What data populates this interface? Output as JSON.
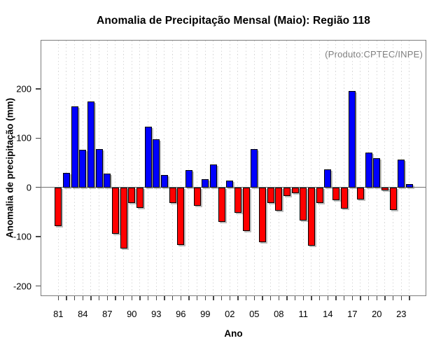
{
  "page": {
    "title": "Anomalia de Precipitação Mensal (Maio): Região 118"
  },
  "chart_data": {
    "type": "bar",
    "title": "Anomalia de Precipitação Mensal (Maio): Região 118",
    "xlabel": "Ano",
    "ylabel": "Anomalia de precipitação (mm)",
    "annotation": "(Produto:CPTEC/INPE)",
    "categories": [
      "81",
      "82",
      "83",
      "84",
      "85",
      "86",
      "87",
      "88",
      "89",
      "90",
      "91",
      "92",
      "93",
      "94",
      "95",
      "96",
      "97",
      "98",
      "99",
      "00",
      "01",
      "02",
      "03",
      "04",
      "05",
      "06",
      "07",
      "08",
      "09",
      "10",
      "11",
      "12",
      "13",
      "14",
      "15",
      "16",
      "17",
      "18",
      "19",
      "20",
      "21",
      "22",
      "23",
      "24"
    ],
    "values": [
      -78,
      30,
      165,
      76,
      174,
      78,
      28,
      -94,
      -124,
      -31,
      -42,
      123,
      98,
      25,
      -32,
      -117,
      35,
      -38,
      17,
      47,
      -70,
      14,
      -51,
      -88,
      78,
      -111,
      -31,
      -47,
      -17,
      -12,
      -67,
      -118,
      -32,
      36,
      -26,
      -43,
      195,
      -25,
      70,
      59,
      -6,
      -46,
      56,
      7
    ],
    "x_tick_labels": [
      "81",
      "84",
      "87",
      "90",
      "93",
      "96",
      "99",
      "02",
      "05",
      "08",
      "11",
      "14",
      "17",
      "20",
      "23"
    ],
    "x_tick_step": 3,
    "y_ticks": [
      -200,
      -100,
      0,
      100,
      200
    ],
    "ylim": [
      -220,
      300
    ],
    "grid": "vertical-dashed",
    "legend": "none",
    "colors": {
      "positive": "#0000ff",
      "negative": "#ff0000",
      "bar_border": "#000000",
      "zero_line": "#707070",
      "gridline": "#d9d9d9",
      "frame": "#7d7d7d",
      "annotation_text": "#808080",
      "text": "#000000",
      "background": "#ffffff"
    }
  }
}
